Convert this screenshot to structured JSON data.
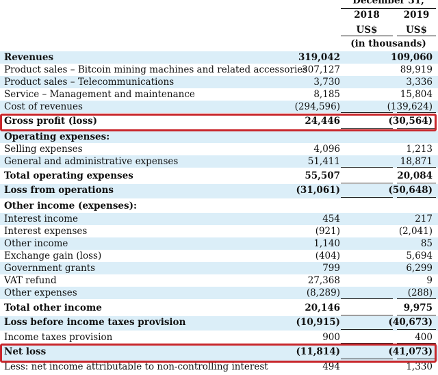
{
  "header": {
    "period": "December 31,",
    "year_2018": "2018",
    "year_2019": "2019",
    "currency_2018": "US$",
    "currency_2019": "US$",
    "units": "(in thousands)"
  },
  "rows": [
    {
      "label": "Revenues",
      "v2018": "319,042",
      "v2019": "109,060",
      "bold": true
    },
    {
      "label": "Product sales – Bitcoin mining machines and related accessories",
      "v2018": "307,127",
      "v2019": "89,919"
    },
    {
      "label": "Product sales – Telecommunications",
      "v2018": "3,730",
      "v2019": "3,336"
    },
    {
      "label": "Service – Management and maintenance",
      "v2018": "8,185",
      "v2019": "15,804"
    },
    {
      "label": "Cost of revenues",
      "v2018": "(294,596)",
      "v2019": "(139,624)"
    },
    {
      "label": "Gross profit (loss)",
      "v2018": "24,446",
      "v2019": "(30,564)",
      "bold": true
    },
    {
      "label": "Operating expenses:",
      "v2018": "",
      "v2019": "",
      "bold": true
    },
    {
      "label": "Selling expenses",
      "v2018": "4,096",
      "v2019": "1,213"
    },
    {
      "label": "General and administrative expenses",
      "v2018": "51,411",
      "v2019": "18,871"
    },
    {
      "label": "Total operating expenses",
      "v2018": "55,507",
      "v2019": "20,084",
      "bold": true
    },
    {
      "label": "Loss from operations",
      "v2018": "(31,061)",
      "v2019": "(50,648)",
      "bold": true
    },
    {
      "label": "Other income (expenses):",
      "v2018": "",
      "v2019": "",
      "bold": true
    },
    {
      "label": "Interest income",
      "v2018": "454",
      "v2019": "217"
    },
    {
      "label": "Interest expenses",
      "v2018": "(921)",
      "v2019": "(2,041)"
    },
    {
      "label": "Other income",
      "v2018": "1,140",
      "v2019": "85"
    },
    {
      "label": "Exchange gain (loss)",
      "v2018": "(404)",
      "v2019": "5,694"
    },
    {
      "label": "Government grants",
      "v2018": "799",
      "v2019": "6,299"
    },
    {
      "label": "VAT refund",
      "v2018": "27,368",
      "v2019": "9"
    },
    {
      "label": "Other expenses",
      "v2018": "(8,289)",
      "v2019": "(288)"
    },
    {
      "label": "Total other income",
      "v2018": "20,146",
      "v2019": "9,975",
      "bold": true
    },
    {
      "label": "Loss before income taxes provision",
      "v2018": "(10,915)",
      "v2019": "(40,673)",
      "bold": true
    },
    {
      "label": "Income taxes provision",
      "v2018": "900",
      "v2019": "400"
    },
    {
      "label": "Net loss",
      "v2018": "(11,814)",
      "v2019": "(41,073)",
      "bold": true
    },
    {
      "label": "Less: net income attributable to non-controlling interest",
      "v2018": "494",
      "v2019": "1,330"
    }
  ],
  "colors": {
    "row_blue": "#dbeef8",
    "highlight_border": "#c8262b"
  }
}
